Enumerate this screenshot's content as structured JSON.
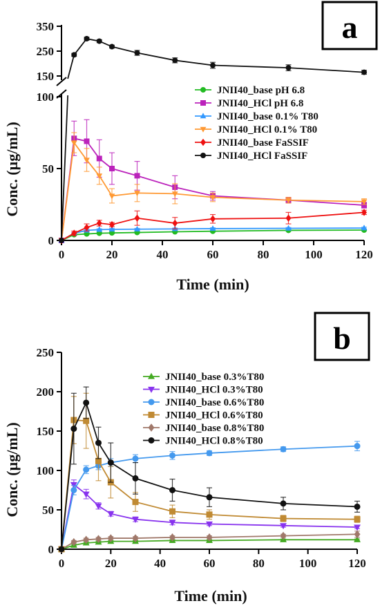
{
  "chart_data": [
    {
      "type": "line",
      "panel_label": "a",
      "xlabel": "Time (min)",
      "ylabel": "Conc. (µg/mL)",
      "xlim": [
        0,
        120
      ],
      "x_ticks": [
        "0",
        "20",
        "40",
        "60",
        "80",
        "100",
        "120"
      ],
      "ylim_lower": [
        0,
        100
      ],
      "ylim_upper": [
        150,
        350
      ],
      "y_ticks_lower": [
        "0",
        "50",
        "100"
      ],
      "y_ticks_upper": [
        "150",
        "250",
        "350"
      ],
      "axis_break": true,
      "legend_position": "right",
      "series": [
        {
          "name": "JNII40_base pH 6.8",
          "color": "#22bb22",
          "marker": "circle",
          "x": [
            0,
            5,
            10,
            15,
            20,
            30,
            45,
            60,
            90,
            120
          ],
          "y": [
            0,
            4,
            4.5,
            5,
            5.2,
            5.5,
            6,
            6.4,
            7,
            7.2
          ],
          "err": [
            0,
            0.5,
            0.5,
            0.5,
            0.5,
            0.5,
            0.5,
            0.5,
            0.6,
            0.6
          ]
        },
        {
          "name": "JNII40_HCl pH 6.8",
          "color": "#bb22bb",
          "marker": "square",
          "x": [
            0,
            5,
            10,
            15,
            20,
            30,
            45,
            60,
            90,
            120
          ],
          "y": [
            0,
            71,
            69,
            57,
            50,
            45,
            37,
            31,
            28,
            24.5
          ],
          "err": [
            0,
            12,
            15,
            13,
            11,
            10,
            8,
            3,
            2,
            2
          ]
        },
        {
          "name": "JNII40_base 0.1% T80",
          "color": "#3399ff",
          "marker": "triangle-up",
          "x": [
            0,
            5,
            10,
            15,
            20,
            30,
            45,
            60,
            90,
            120
          ],
          "y": [
            0,
            5,
            7,
            7.5,
            7.7,
            7.8,
            8,
            8.2,
            8.4,
            8.6
          ],
          "err": [
            0,
            0.6,
            0.6,
            0.6,
            0.6,
            0.6,
            0.6,
            0.6,
            0.6,
            0.6
          ]
        },
        {
          "name": "JNII40_HCl 0.1% T80",
          "color": "#ff9933",
          "marker": "triangle-down",
          "x": [
            0,
            5,
            10,
            15,
            20,
            30,
            45,
            60,
            90,
            120
          ],
          "y": [
            0,
            68,
            56,
            45,
            31,
            33,
            32.5,
            30,
            28,
            27
          ],
          "err": [
            0,
            7,
            8,
            6,
            5,
            6,
            7,
            3,
            2,
            2
          ]
        },
        {
          "name": "JNII40_base FaSSIF",
          "color": "#ee1111",
          "marker": "diamond",
          "x": [
            0,
            5,
            10,
            15,
            20,
            30,
            45,
            60,
            90,
            120
          ],
          "y": [
            0,
            5,
            9,
            12,
            11,
            15.5,
            12,
            15,
            15.5,
            19.5
          ],
          "err": [
            0,
            1.5,
            2.5,
            2,
            1.5,
            5,
            4,
            3,
            4,
            1.5
          ]
        },
        {
          "name": "JNII40_HCl FaSSIF",
          "color": "#111111",
          "marker": "circle",
          "x": [
            0,
            5,
            10,
            15,
            20,
            30,
            45,
            60,
            90,
            120
          ],
          "y": [
            0,
            235,
            300,
            290,
            268,
            243,
            213,
            193,
            183,
            165
          ],
          "err": [
            0,
            6,
            6,
            6,
            6,
            10,
            10,
            12,
            12,
            8
          ]
        }
      ]
    },
    {
      "type": "line",
      "panel_label": "b",
      "xlabel": "Time (min)",
      "ylabel": "Conc. (µg/mL)",
      "xlim": [
        0,
        120
      ],
      "x_ticks": [
        "0",
        "20",
        "40",
        "60",
        "80",
        "100",
        "120"
      ],
      "ylim": [
        0,
        250
      ],
      "y_ticks": [
        "0",
        "50",
        "100",
        "150",
        "200",
        "250"
      ],
      "legend_position": "top-right",
      "series": [
        {
          "name": "JNII40_base 0.3%T80",
          "color": "#44aa22",
          "marker": "triangle-up",
          "x": [
            0,
            5,
            10,
            15,
            20,
            30,
            45,
            60,
            90,
            120
          ],
          "y": [
            0,
            5,
            8,
            9,
            10,
            10,
            11,
            11,
            12,
            12
          ],
          "err": [
            0,
            1,
            1,
            1,
            1,
            1,
            1,
            1,
            1,
            1
          ]
        },
        {
          "name": "JNII40_HCl 0.3%T80",
          "color": "#8833ee",
          "marker": "triangle-down",
          "x": [
            0,
            5,
            10,
            15,
            20,
            30,
            45,
            60,
            90,
            120
          ],
          "y": [
            0,
            82,
            70,
            55,
            45,
            38,
            34,
            32,
            30,
            28
          ],
          "err": [
            0,
            6,
            6,
            4,
            3,
            3,
            3,
            2,
            2,
            2
          ]
        },
        {
          "name": "JNII40_base 0.6%T80",
          "color": "#4499ee",
          "marker": "circle",
          "x": [
            0,
            5,
            10,
            15,
            20,
            30,
            45,
            60,
            90,
            120
          ],
          "y": [
            0,
            75,
            101,
            106,
            110,
            115,
            119,
            122,
            127,
            131
          ],
          "err": [
            0,
            6,
            5,
            5,
            5,
            5,
            5,
            3,
            3,
            6
          ]
        },
        {
          "name": "JNII40_HCl 0.6%T80",
          "color": "#c08a33",
          "marker": "square",
          "x": [
            0,
            5,
            10,
            15,
            20,
            30,
            45,
            60,
            90,
            120
          ],
          "y": [
            0,
            164,
            163,
            112,
            85,
            60,
            48,
            44,
            39,
            38
          ],
          "err": [
            0,
            30,
            35,
            25,
            20,
            12,
            8,
            6,
            4,
            4
          ]
        },
        {
          "name": "JNII40_base 0.8%T80",
          "color": "#a0786a",
          "marker": "diamond",
          "x": [
            0,
            5,
            10,
            15,
            20,
            30,
            45,
            60,
            90,
            120
          ],
          "y": [
            0,
            9,
            12,
            13,
            14,
            14,
            15,
            15,
            17,
            19
          ],
          "err": [
            0,
            2,
            2,
            2,
            2,
            2,
            2,
            2,
            2,
            4
          ]
        },
        {
          "name": "JNII40_HCl 0.8%T80",
          "color": "#111111",
          "marker": "circle",
          "x": [
            0,
            5,
            10,
            15,
            20,
            30,
            45,
            60,
            90,
            120
          ],
          "y": [
            0,
            153,
            186,
            135,
            110,
            90,
            75,
            66,
            58,
            54
          ],
          "err": [
            0,
            45,
            20,
            20,
            25,
            20,
            14,
            12,
            8,
            7
          ]
        }
      ]
    }
  ]
}
